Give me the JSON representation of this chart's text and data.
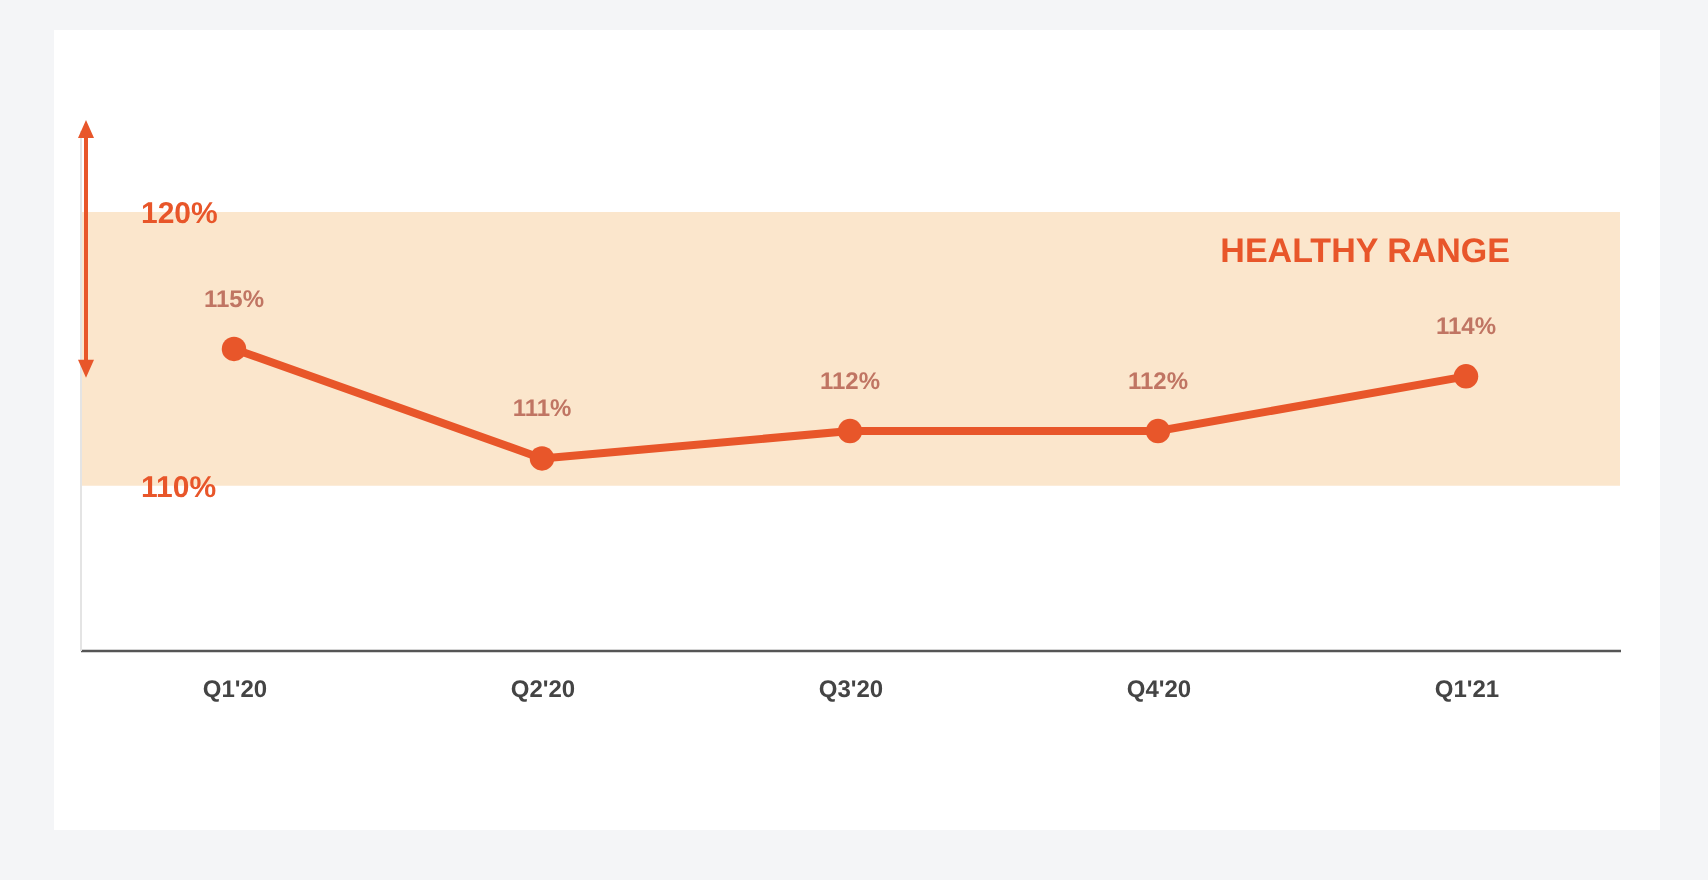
{
  "chart_data": {
    "type": "line",
    "categories": [
      "Q1'20",
      "Q2'20",
      "Q3'20",
      "Q4'20",
      "Q1'21"
    ],
    "series": [
      {
        "color": "#e8562a",
        "values": [
          115,
          111,
          112,
          112,
          114
        ],
        "value_labels": [
          "115%",
          "111%",
          "112%",
          "112%",
          "114%"
        ]
      }
    ],
    "ylim": [
      104,
      123
    ],
    "yticks": [
      {
        "value": 110,
        "label": "110%"
      },
      {
        "value": 120,
        "label": "120%"
      }
    ],
    "bands": [
      {
        "axis": "y",
        "from": 110,
        "to": 120,
        "label": "HEALTHY RANGE",
        "color": "#fbe6cc"
      }
    ],
    "marker": "circle",
    "line_style": "solid",
    "grid": false
  }
}
